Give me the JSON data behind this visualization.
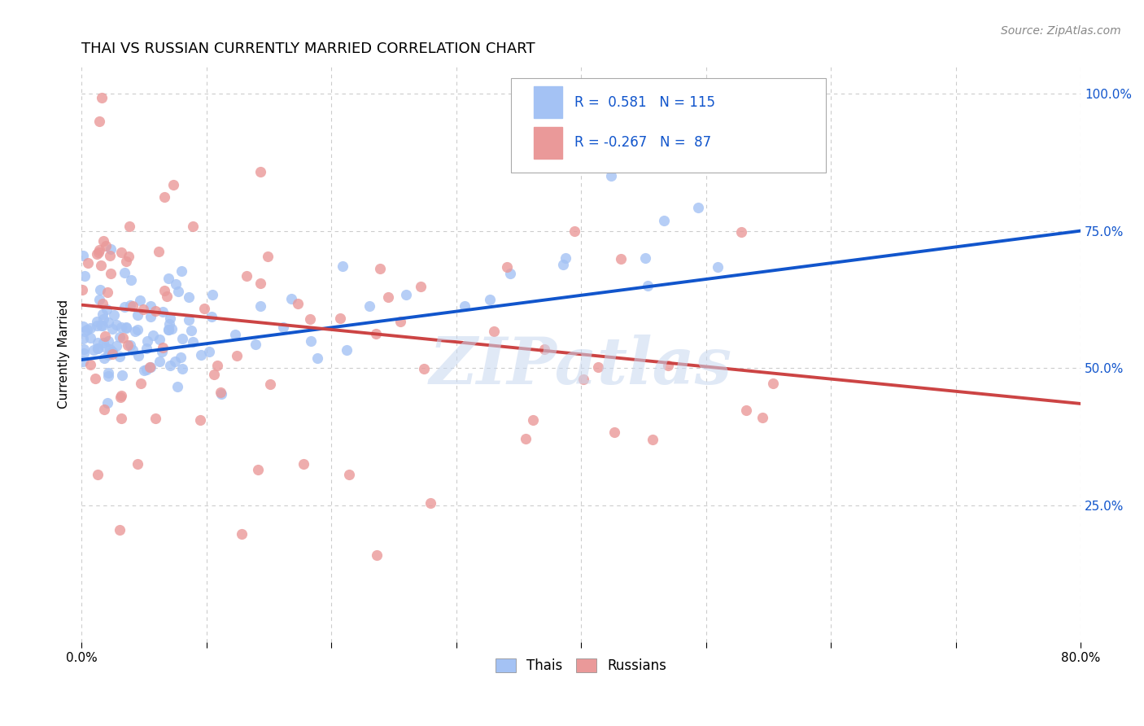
{
  "title": "THAI VS RUSSIAN CURRENTLY MARRIED CORRELATION CHART",
  "source": "Source: ZipAtlas.com",
  "ylabel": "Currently Married",
  "xlim": [
    0.0,
    0.8
  ],
  "ylim": [
    0.0,
    1.05
  ],
  "ytick_positions": [
    0.25,
    0.5,
    0.75,
    1.0
  ],
  "ytick_labels": [
    "25.0%",
    "50.0%",
    "75.0%",
    "100.0%"
  ],
  "thai_color": "#a4c2f4",
  "russian_color": "#ea9999",
  "thai_line_color": "#1155cc",
  "russian_line_color": "#cc4444",
  "legend_text_color": "#1155cc",
  "R_thai": 0.581,
  "N_thai": 115,
  "R_russian": -0.267,
  "N_russian": 87,
  "background_color": "#ffffff",
  "grid_color": "#cccccc",
  "title_fontsize": 13,
  "axis_label_fontsize": 11,
  "tick_fontsize": 11
}
